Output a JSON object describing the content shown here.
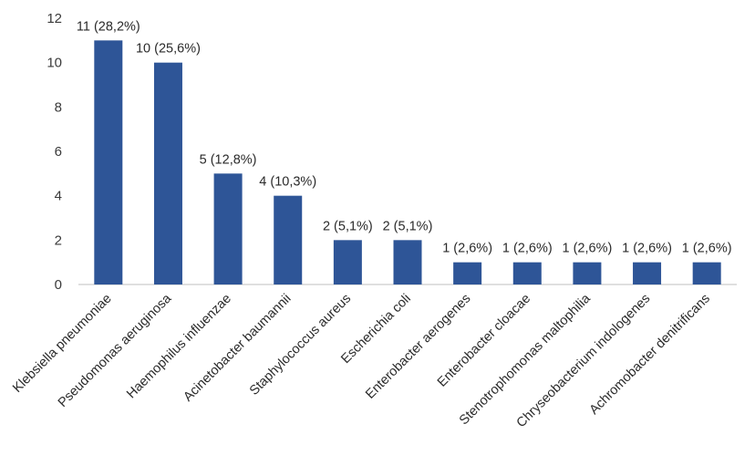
{
  "chart_data": {
    "type": "bar",
    "categories": [
      "Klebsiella pneumoniae",
      "Pseudomonas aeruginosa",
      "Haemophilus influenzae",
      "Acinetobacter baumannii",
      "Staphylococcus aureus",
      "Escherichia coli",
      "Enterobacter aerogenes",
      "Enterobacter cloacae",
      "Stenotrophomonas maltophilia",
      "Chryseobacterium indologenes",
      "Achromobacter denitrificans"
    ],
    "values": [
      11,
      10,
      5,
      4,
      2,
      2,
      1,
      1,
      1,
      1,
      1
    ],
    "data_labels": [
      "11 (28,2%)",
      "10 (25,6%)",
      "5 (12,8%)",
      "4 (10,3%)",
      "2 (5,1%)",
      "2 (5,1%)",
      "1 (2,6%)",
      "1 (2,6%)",
      "1 (2,6%)",
      "1 (2,6%)",
      "1 (2,6%)"
    ],
    "y_ticks": [
      "0",
      "2",
      "4",
      "6",
      "8",
      "10",
      "12"
    ],
    "ylim": [
      0,
      12
    ],
    "grid": false,
    "legend": "none",
    "bar_color": "#2e5597"
  }
}
